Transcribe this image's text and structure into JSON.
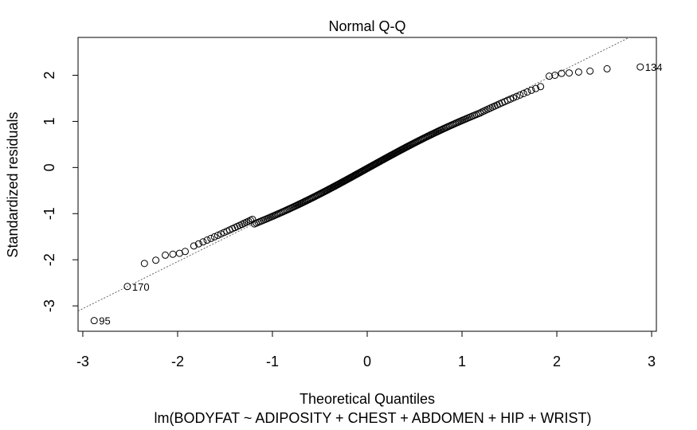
{
  "chart_data": {
    "type": "scatter",
    "title": "Normal Q-Q",
    "xlabel": "Theoretical Quantiles",
    "ylabel": "Standardized residuals",
    "subtitle": "lm(BODYFAT ~ ADIPOSITY + CHEST + ABDOMEN + HIP + WRIST)",
    "xlim": [
      -3.05,
      3.05
    ],
    "ylim": [
      -3.55,
      2.82
    ],
    "xticks": [
      -3,
      -2,
      -1,
      0,
      1,
      2,
      3
    ],
    "yticks": [
      -3,
      -2,
      -1,
      0,
      1,
      2
    ],
    "xtick_labels": [
      "-3",
      "-2",
      "-1",
      "0",
      "1",
      "2",
      "3"
    ],
    "ytick_labels": [
      "-3",
      "-2",
      "-1",
      "0",
      "1",
      "2"
    ],
    "n_points": 252,
    "reference_line": {
      "intercept": 0.0,
      "slope": 1.02,
      "style": "dotted"
    },
    "tail_points": {
      "low": [
        [
          -2.88,
          -3.32
        ],
        [
          -2.53,
          -2.58
        ],
        [
          -2.35,
          -2.08
        ],
        [
          -2.23,
          -2.01
        ],
        [
          -2.13,
          -1.9
        ],
        [
          -2.05,
          -1.88
        ],
        [
          -1.98,
          -1.86
        ],
        [
          -1.92,
          -1.82
        ]
      ],
      "high": [
        [
          1.92,
          1.98
        ],
        [
          1.98,
          2.0
        ],
        [
          2.05,
          2.04
        ],
        [
          2.13,
          2.05
        ],
        [
          2.23,
          2.07
        ],
        [
          2.35,
          2.09
        ],
        [
          2.53,
          2.14
        ],
        [
          2.88,
          2.18
        ]
      ]
    },
    "labeled_points": [
      {
        "label": "95",
        "x": -2.88,
        "y": -3.32
      },
      {
        "label": "170",
        "x": -2.53,
        "y": -2.58
      },
      {
        "label": "134",
        "x": 2.88,
        "y": 2.18
      }
    ]
  }
}
